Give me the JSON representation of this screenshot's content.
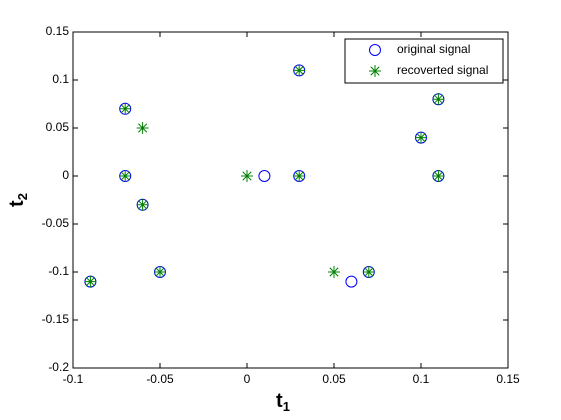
{
  "chart_data": {
    "type": "scatter",
    "xlabel": {
      "text": "t",
      "subscript": "1"
    },
    "ylabel": {
      "text": "t",
      "subscript": "2"
    },
    "xlim": [
      -0.1,
      0.15
    ],
    "xticks": [
      -0.1,
      -0.05,
      0,
      0.05,
      0.1,
      0.15
    ],
    "ylim": [
      -0.2,
      0.15
    ],
    "yticks": [
      -0.2,
      -0.15,
      -0.1,
      -0.05,
      0,
      0.05,
      0.1,
      0.15
    ],
    "legend": "northeast",
    "series": [
      {
        "name": "original signal",
        "color": "#0000ff",
        "marker": "circle",
        "x": [
          -0.07,
          -0.07,
          -0.06,
          -0.09,
          -0.05,
          0.01,
          0.03,
          0.03,
          0.06,
          0.07,
          0.1,
          0.11,
          0.11
        ],
        "values": [
          0.07,
          0,
          -0.03,
          -0.11,
          -0.1,
          0,
          0.11,
          0,
          -0.11,
          -0.1,
          0.04,
          0.08,
          0
        ]
      },
      {
        "name": "recoverted signal",
        "color": "#008000",
        "marker": "star",
        "x": [
          -0.07,
          -0.06,
          -0.07,
          -0.06,
          -0.09,
          -0.05,
          0,
          0.03,
          0.03,
          0.05,
          0.07,
          0.1,
          0.11,
          0.11
        ],
        "values": [
          0.07,
          0.05,
          0,
          -0.03,
          -0.11,
          -0.1,
          0,
          0.11,
          0,
          -0.1,
          -0.1,
          0.04,
          0.08,
          0
        ]
      }
    ]
  }
}
